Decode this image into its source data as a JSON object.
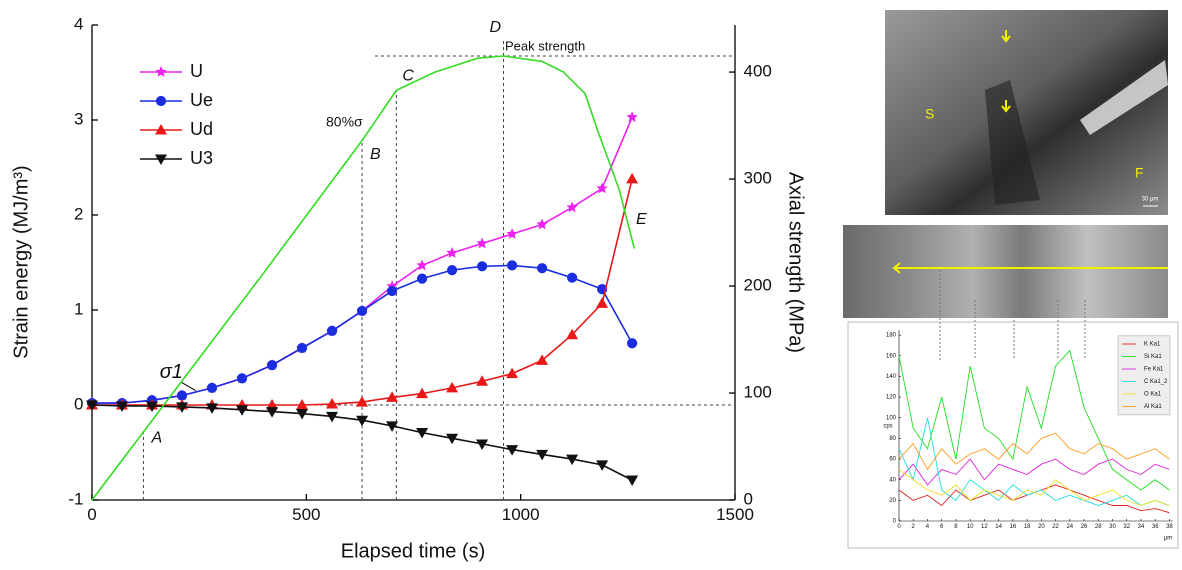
{
  "chart_data": [
    {
      "type": "line",
      "x_label": "Elapsed time (s)",
      "y_label": "Strain energy (MJ/m³)",
      "y2_label": "Axial strength (MPa)",
      "xlim": [
        0,
        1500
      ],
      "xticks": [
        0,
        500,
        1000,
        1500
      ],
      "ylim": [
        -1,
        4
      ],
      "yticks": [
        -1,
        0,
        1,
        2,
        3,
        4
      ],
      "y2lim": [
        0,
        444
      ],
      "y2ticks": [
        0,
        100,
        200,
        300,
        400
      ],
      "legend": "upper left",
      "x": [
        0,
        70,
        140,
        210,
        280,
        350,
        420,
        490,
        560,
        630,
        700,
        770,
        840,
        910,
        980,
        1050,
        1120,
        1190,
        1260
      ],
      "series": [
        {
          "name": "U",
          "color": "#ee22ee",
          "marker": "star",
          "values": [
            0.02,
            0.02,
            0.05,
            0.1,
            0.18,
            0.28,
            0.42,
            0.6,
            0.78,
            0.99,
            1.25,
            1.47,
            1.6,
            1.7,
            1.8,
            1.9,
            2.08,
            2.28,
            3.03
          ]
        },
        {
          "name": "Ue",
          "color": "#1a2ee0",
          "marker": "circle",
          "values": [
            0.02,
            0.02,
            0.05,
            0.1,
            0.18,
            0.28,
            0.42,
            0.6,
            0.78,
            0.99,
            1.2,
            1.33,
            1.42,
            1.46,
            1.47,
            1.44,
            1.34,
            1.22,
            0.65
          ]
        },
        {
          "name": "Ud",
          "color": "#e81818",
          "marker": "triangle-up",
          "values": [
            0,
            0,
            0,
            0,
            0,
            0,
            0,
            0,
            0.01,
            0.03,
            0.08,
            0.12,
            0.18,
            0.25,
            0.33,
            0.47,
            0.74,
            1.07,
            2.38
          ]
        },
        {
          "name": "U3",
          "color": "#111111",
          "marker": "triangle-down",
          "values": [
            0,
            -0.01,
            -0.01,
            -0.02,
            -0.03,
            -0.05,
            -0.07,
            -0.09,
            -0.12,
            -0.16,
            -0.22,
            -0.29,
            -0.35,
            -0.41,
            -0.47,
            -0.52,
            -0.57,
            -0.63,
            -0.79
          ]
        },
        {
          "name": "σ1",
          "color": "#33dd22",
          "axis": "y2",
          "legend": false,
          "x": [
            0,
            200,
            400,
            630,
            710,
            800,
            900,
            960,
            1050,
            1100,
            1150,
            1180,
            1230,
            1265
          ],
          "values": [
            0,
            106,
            212,
            336,
            383,
            400,
            413,
            415,
            410,
            400,
            380,
            345,
            290,
            235
          ]
        }
      ],
      "vlines": [
        {
          "x": 120,
          "label": "A"
        },
        {
          "x": 630,
          "label": "B"
        },
        {
          "x": 710,
          "label": "C"
        },
        {
          "x": 960,
          "label": "D"
        }
      ],
      "hlines": [
        {
          "axis": "y",
          "value": 0
        },
        {
          "axis": "y2",
          "value": 415
        }
      ],
      "annotations": [
        "E",
        "80%σ",
        "Peak strength"
      ]
    },
    {
      "type": "line",
      "x_label": "μm",
      "y_label": "cps",
      "xlim": [
        0,
        38.5
      ],
      "xticks": [
        0,
        2,
        4,
        6,
        8,
        10,
        12,
        14,
        16,
        18,
        20,
        22,
        24,
        26,
        28,
        30,
        32,
        34,
        36,
        38
      ],
      "ylim": [
        0,
        185
      ],
      "yticks": [
        0,
        20,
        40,
        60,
        80,
        100,
        120,
        140,
        160,
        180
      ],
      "legend": "upper right",
      "x": [
        0,
        2,
        4,
        6,
        8,
        10,
        12,
        14,
        16,
        18,
        20,
        22,
        24,
        26,
        28,
        30,
        32,
        34,
        36,
        38
      ],
      "series": [
        {
          "name": "K Ka1",
          "color": "#e02020",
          "values": [
            30,
            20,
            25,
            15,
            30,
            20,
            25,
            30,
            20,
            25,
            30,
            35,
            30,
            25,
            20,
            15,
            15,
            10,
            12,
            8
          ]
        },
        {
          "name": "Si Ka1",
          "color": "#22dd22",
          "values": [
            160,
            90,
            70,
            120,
            60,
            150,
            90,
            80,
            60,
            130,
            90,
            150,
            165,
            110,
            80,
            50,
            40,
            30,
            40,
            30
          ]
        },
        {
          "name": "Fe Ka1",
          "color": "#dd22dd",
          "values": [
            40,
            55,
            35,
            50,
            45,
            60,
            40,
            55,
            50,
            45,
            55,
            60,
            50,
            45,
            55,
            60,
            50,
            45,
            55,
            50
          ]
        },
        {
          "name": "C Ka1_2",
          "color": "#22dddd",
          "values": [
            70,
            40,
            100,
            30,
            20,
            40,
            30,
            20,
            35,
            25,
            30,
            20,
            25,
            20,
            15,
            20,
            25,
            15,
            20,
            15
          ]
        },
        {
          "name": "O Ka1",
          "color": "#f0e020",
          "values": [
            50,
            40,
            30,
            25,
            35,
            20,
            30,
            25,
            20,
            30,
            25,
            40,
            30,
            20,
            25,
            30,
            20,
            15,
            20,
            15
          ]
        },
        {
          "name": "Al Ka1",
          "color": "#ff9922",
          "values": [
            60,
            75,
            50,
            70,
            55,
            65,
            70,
            60,
            75,
            65,
            80,
            85,
            70,
            65,
            75,
            70,
            60,
            65,
            70,
            60
          ]
        }
      ]
    }
  ],
  "micrograph": {
    "labels": [
      "S",
      "F"
    ],
    "scale": "30 μm"
  }
}
